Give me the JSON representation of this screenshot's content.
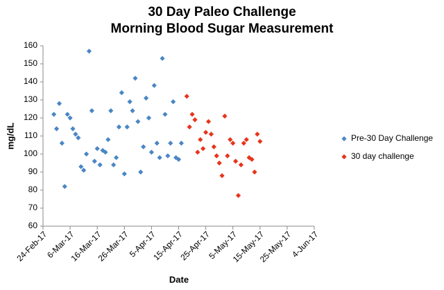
{
  "chart_data": {
    "type": "scatter",
    "title": "30 Day Paleo Challenge",
    "subtitle": "Morning Blood Sugar Measurement",
    "x_label": "Date",
    "y_label": "mg/dL",
    "series": [
      {
        "name": "Pre-30 Day Challenge",
        "color": "#4a86c5",
        "x": [
          "2017-02-28",
          "2017-03-01",
          "2017-03-02",
          "2017-03-03",
          "2017-03-04",
          "2017-03-05",
          "2017-03-06",
          "2017-03-07",
          "2017-03-08",
          "2017-03-09",
          "2017-03-10",
          "2017-03-11",
          "2017-03-12",
          "2017-03-13",
          "2017-03-14",
          "2017-03-15",
          "2017-03-16",
          "2017-03-17",
          "2017-03-18",
          "2017-03-19",
          "2017-03-20",
          "2017-03-21",
          "2017-03-22",
          "2017-03-23",
          "2017-03-24",
          "2017-03-25",
          "2017-03-26",
          "2017-03-27",
          "2017-03-28",
          "2017-03-29",
          "2017-03-30",
          "2017-03-31",
          "2017-04-01",
          "2017-04-02",
          "2017-04-03",
          "2017-04-04",
          "2017-04-05",
          "2017-04-06",
          "2017-04-07",
          "2017-04-08",
          "2017-04-09",
          "2017-04-10",
          "2017-04-11",
          "2017-04-12",
          "2017-04-13",
          "2017-04-14",
          "2017-04-15",
          "2017-04-16"
        ],
        "values": [
          122,
          114,
          128,
          106,
          82,
          122,
          120,
          114,
          111,
          109,
          93,
          91,
          100,
          157,
          124,
          96,
          103,
          94,
          102,
          101,
          108,
          124,
          94,
          98,
          115,
          134,
          89,
          115,
          129,
          124,
          142,
          118,
          90,
          104,
          131,
          120,
          101,
          138,
          106,
          98,
          153,
          122,
          99,
          106,
          129,
          98,
          97,
          106
        ]
      },
      {
        "name": "30 day challenge",
        "color": "#e8341c",
        "x": [
          "2017-04-18",
          "2017-04-19",
          "2017-04-20",
          "2017-04-21",
          "2017-04-22",
          "2017-04-23",
          "2017-04-24",
          "2017-04-25",
          "2017-04-26",
          "2017-04-27",
          "2017-04-28",
          "2017-04-29",
          "2017-04-30",
          "2017-05-01",
          "2017-05-02",
          "2017-05-03",
          "2017-05-04",
          "2017-05-05",
          "2017-05-06",
          "2017-05-07",
          "2017-05-08",
          "2017-05-09",
          "2017-05-10",
          "2017-05-11",
          "2017-05-12",
          "2017-05-13",
          "2017-05-14",
          "2017-05-15"
        ],
        "values": [
          132,
          115,
          122,
          119,
          101,
          108,
          103,
          112,
          118,
          111,
          104,
          99,
          95,
          88,
          121,
          99,
          108,
          106,
          96,
          77,
          94,
          106,
          108,
          98,
          97,
          90,
          111,
          107
        ]
      }
    ],
    "xlim": [
      "2017-02-24",
      "2017-06-04"
    ],
    "xticks": [
      {
        "value": "2017-02-24",
        "label": "24-Feb-17"
      },
      {
        "value": "2017-03-06",
        "label": "6-Mar-17"
      },
      {
        "value": "2017-03-16",
        "label": "16-Mar-17"
      },
      {
        "value": "2017-03-26",
        "label": "26-Mar-17"
      },
      {
        "value": "2017-04-05",
        "label": "5-Apr-17"
      },
      {
        "value": "2017-04-15",
        "label": "15-Apr-17"
      },
      {
        "value": "2017-04-25",
        "label": "25-Apr-17"
      },
      {
        "value": "2017-05-05",
        "label": "5-May-17"
      },
      {
        "value": "2017-05-15",
        "label": "15-May-17"
      },
      {
        "value": "2017-05-25",
        "label": "25-May-17"
      },
      {
        "value": "2017-06-04",
        "label": "4-Jun-17"
      }
    ],
    "ylim": [
      60,
      160
    ],
    "yticks": [
      60,
      70,
      80,
      90,
      100,
      110,
      120,
      130,
      140,
      150,
      160
    ],
    "grid": false,
    "legend": "right"
  }
}
